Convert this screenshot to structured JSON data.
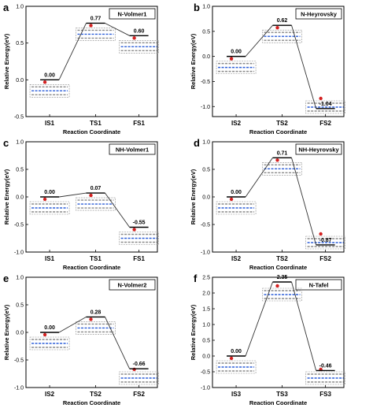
{
  "chart_data": [
    {
      "type": "line",
      "panel": "a",
      "label": "N-Volmer1",
      "categories": [
        "IS1",
        "TS1",
        "FS1"
      ],
      "values": [
        0.0,
        0.77,
        0.6
      ],
      "value_labels": [
        "0.00",
        "0.77",
        "0.60"
      ],
      "xlabel": "Reaction Coordinate",
      "ylabel": "Relative Energy(eV)",
      "ylim": [
        -0.5,
        1.0
      ],
      "yticks": [
        -0.5,
        0.0,
        0.5,
        1.0
      ],
      "ytick_labels": [
        "-0.5",
        "0.0",
        "0.5",
        "1.0"
      ]
    },
    {
      "type": "line",
      "panel": "b",
      "label": "N-Heyrovsky",
      "categories": [
        "IS2",
        "TS2",
        "FS2"
      ],
      "values": [
        0.0,
        0.62,
        -1.04
      ],
      "value_labels": [
        "0.00",
        "0.62",
        "-1.04"
      ],
      "xlabel": "Reaction Coordinate",
      "ylabel": "Relative Energy(eV)",
      "ylim": [
        -1.2,
        1.0
      ],
      "yticks": [
        -1.0,
        -0.5,
        0.0,
        0.5,
        1.0
      ],
      "ytick_labels": [
        "-1.0",
        "-0.5",
        "0.0",
        "0.5",
        "1.0"
      ]
    },
    {
      "type": "line",
      "panel": "c",
      "label": "NH-Volmer1",
      "categories": [
        "IS1",
        "TS1",
        "FS1"
      ],
      "values": [
        0.0,
        0.07,
        -0.55
      ],
      "value_labels": [
        "0.00",
        "0.07",
        "-0.55"
      ],
      "xlabel": "Reaction Coordinate",
      "ylabel": "Relative Energy(eV)",
      "ylim": [
        -1.0,
        1.0
      ],
      "yticks": [
        -1.0,
        -0.5,
        0.0,
        0.5,
        1.0
      ],
      "ytick_labels": [
        "-1.0",
        "-0.5",
        "0.0",
        "0.5",
        "1.0"
      ]
    },
    {
      "type": "line",
      "panel": "d",
      "label": "NH-Heyrovsky",
      "categories": [
        "IS2",
        "TS2",
        "FS2"
      ],
      "values": [
        0.0,
        0.71,
        -0.87
      ],
      "value_labels": [
        "0.00",
        "0.71",
        "-0.87"
      ],
      "xlabel": "Reaction Coordinate",
      "ylabel": "Relative Energy(eV)",
      "ylim": [
        -1.0,
        1.0
      ],
      "yticks": [
        -1.0,
        -0.5,
        0.0,
        0.5,
        1.0
      ],
      "ytick_labels": [
        "-1.0",
        "-0.5",
        "0.0",
        "0.5",
        "1.0"
      ]
    },
    {
      "type": "line",
      "panel": "e",
      "label": "N-Volmer2",
      "categories": [
        "IS2",
        "TS2",
        "FS2"
      ],
      "values": [
        0.0,
        0.28,
        -0.66
      ],
      "value_labels": [
        "0.00",
        "0.28",
        "-0.66"
      ],
      "xlabel": "Reaction Coordinate",
      "ylabel": "Relative Energy(eV)",
      "ylim": [
        -1.0,
        1.0
      ],
      "yticks": [
        -1.0,
        -0.5,
        0.0,
        0.5,
        1.0
      ],
      "ytick_labels": [
        "-1.0",
        "-0.5",
        "0.0",
        "0.5",
        "1.0"
      ]
    },
    {
      "type": "line",
      "panel": "f",
      "label": "N-Tafel",
      "categories": [
        "IS3",
        "TS3",
        "FS3"
      ],
      "values": [
        0.0,
        2.35,
        -0.46
      ],
      "value_labels": [
        "0.00",
        "2.35",
        "-0.46"
      ],
      "xlabel": "Reaction Coordinate",
      "ylabel": "Relative Energy(eV)",
      "ylim": [
        -1.0,
        2.5
      ],
      "yticks": [
        -1.0,
        -0.5,
        0.0,
        0.5,
        1.0,
        1.5,
        2.0,
        2.5
      ],
      "ytick_labels": [
        "-1.0",
        "-0.5",
        "0.0",
        "0.5",
        "1.0",
        "1.5",
        "2.0",
        "2.5"
      ]
    }
  ],
  "colors": {
    "axis": "#000000",
    "path": "#333333",
    "carbon": "#8a8a8a",
    "nitrogen": "#2d5fd8",
    "oxygen": "#d42020",
    "hydrogen": "#ffffff"
  }
}
